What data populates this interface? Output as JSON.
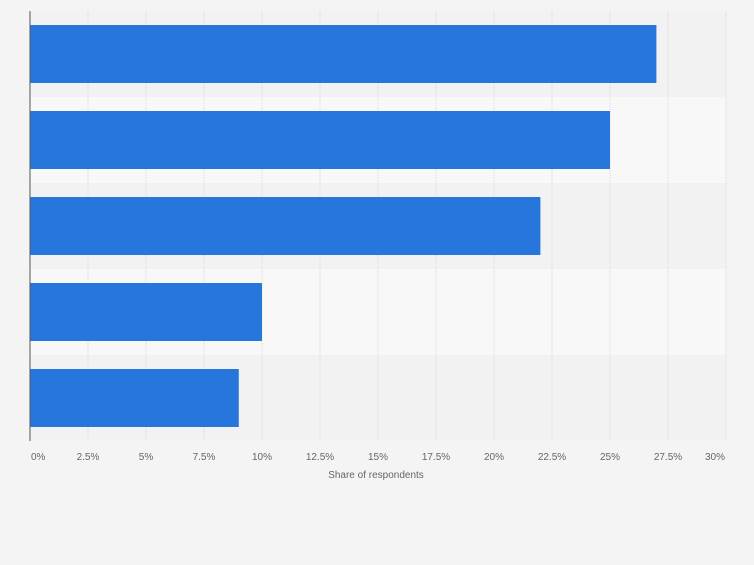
{
  "chart_data": {
    "type": "bar",
    "orientation": "horizontal",
    "categories": [
      "",
      "",
      "",
      "",
      ""
    ],
    "values": [
      27,
      25,
      22,
      10,
      9
    ],
    "xlabel": "Share of respondents",
    "ylabel": "",
    "xlim": [
      0,
      30
    ],
    "ticks": [
      0,
      2.5,
      5,
      7.5,
      10,
      12.5,
      15,
      17.5,
      20,
      22.5,
      25,
      27.5,
      30
    ],
    "tick_labels": [
      "0%",
      "2.5%",
      "5%",
      "7.5%",
      "10%",
      "12.5%",
      "15%",
      "17.5%",
      "20%",
      "22.5%",
      "25%",
      "27.5%",
      "30%"
    ],
    "grid": true,
    "legend": "none",
    "colors": {
      "bar": "#2776dc",
      "band_dark": "#f2f2f2",
      "band_light": "#f8f8f8",
      "grid": "#d8d8d8",
      "axis": "#555555",
      "tick_text": "#666666"
    }
  }
}
